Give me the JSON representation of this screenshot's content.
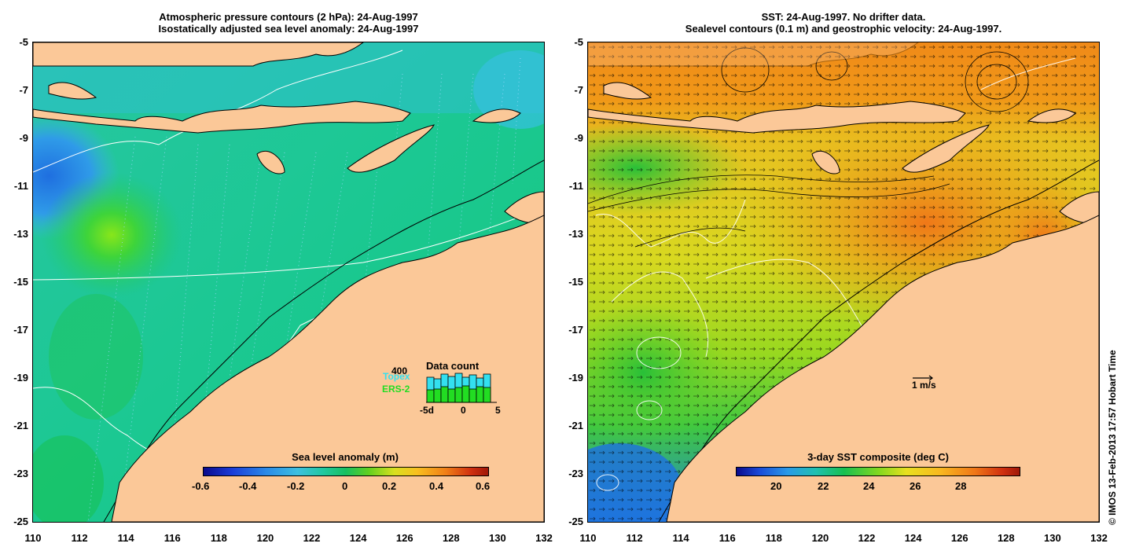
{
  "left_panel": {
    "title_line1": "Atmospheric pressure contours (2 hPa): 24-Aug-1997",
    "title_line2": "Isostatically adjusted sea level anomaly: 24-Aug-1997",
    "colorbar_label": "Sea level anomaly (m)",
    "colorbar_ticks": [
      "-0.6",
      "-0.4",
      "-0.2",
      "0",
      "0.2",
      "0.4",
      "0.6"
    ],
    "inset": {
      "title": "Data count",
      "max_label": "400",
      "topex_label": "Topex",
      "ers_label": "ERS-2",
      "x_ticks": [
        "-5d",
        "0",
        "5"
      ],
      "colors": {
        "topex": "#33e0f0",
        "ers": "#22dd22"
      }
    }
  },
  "right_panel": {
    "title_line1": "SST: 24-Aug-1997. No drifter data.",
    "title_line2": "Sealevel contours (0.1 m) and geostrophic velocity: 24-Aug-1997.",
    "colorbar_label": "3-day SST composite (deg C)",
    "colorbar_ticks": [
      "20",
      "22",
      "24",
      "26",
      "28"
    ],
    "velocity_scale_label": "1 m/s"
  },
  "axes": {
    "lat_ticks": [
      "-5",
      "-7",
      "-9",
      "-11",
      "-13",
      "-15",
      "-17",
      "-19",
      "-21",
      "-23",
      "-25"
    ],
    "lon_ticks": [
      "110",
      "112",
      "114",
      "116",
      "118",
      "120",
      "122",
      "124",
      "126",
      "128",
      "130",
      "132"
    ]
  },
  "credit": "© IMOS 13-Feb-2013 17:57 Hobart Time",
  "colors": {
    "land": "#fbc898",
    "coast": "#000000"
  }
}
